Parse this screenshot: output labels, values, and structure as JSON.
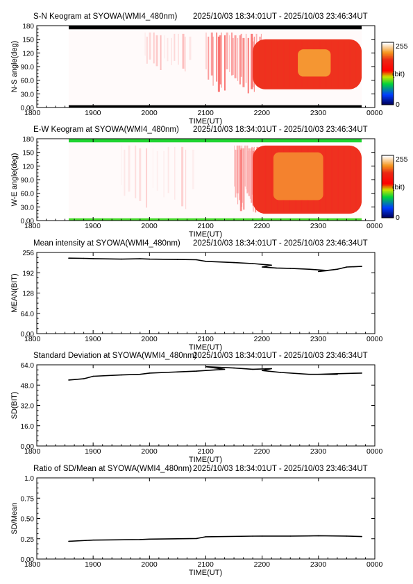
{
  "time_range": "2025/10/03 18:34:01UT - 2025/10/03 23:46:34UT",
  "colorbar": {
    "max_label": "255",
    "min_label": "0",
    "unit_label": "(bit)"
  },
  "chart_data": [
    {
      "type": "heatmap",
      "title": "S-N Keogram at SYOWA(WMI4_480nm)",
      "xlabel": "TIME(UT)",
      "ylabel": "N-S angle(deg)",
      "xlim": [
        1800,
        2400
      ],
      "ylim": [
        0,
        180
      ],
      "x_ticks": [
        "1800",
        "1900",
        "2000",
        "2100",
        "2200",
        "2300",
        "0000"
      ],
      "y_ticks": [
        "0.00",
        "30.0",
        "60.0",
        "90.0",
        "120",
        "150",
        "180"
      ],
      "data_x_start": 1834,
      "data_x_end": 2346,
      "value_range": [
        0,
        255
      ],
      "edge_bands": [
        {
          "y_range": [
            172,
            180
          ],
          "value": 0
        },
        {
          "y_range": [
            0,
            5
          ],
          "value": 0
        }
      ],
      "features": [
        {
          "kind": "faint_streaks",
          "x_range": [
            1955,
            2045
          ],
          "y_range": [
            80,
            165
          ],
          "value": 40
        },
        {
          "kind": "streaks",
          "x_range": [
            2100,
            2200
          ],
          "y_range": [
            30,
            165
          ],
          "value": 80
        },
        {
          "kind": "bright_region",
          "x_range": [
            2150,
            2346
          ],
          "y_range": [
            40,
            150
          ],
          "value": 180
        },
        {
          "kind": "core",
          "x_range": [
            2238,
            2313
          ],
          "y_range": [
            68,
            128
          ],
          "value": 205
        }
      ]
    },
    {
      "type": "heatmap",
      "title": "E-W Keogram at SYOWA(WMI4_480nm)",
      "xlabel": "TIME(UT)",
      "ylabel": "W-E angle(deg)",
      "xlim": [
        1800,
        2400
      ],
      "ylim": [
        0,
        180
      ],
      "x_ticks": [
        "1800",
        "1900",
        "2000",
        "2100",
        "2200",
        "2300",
        "0000"
      ],
      "y_ticks": [
        "0.00",
        "30.0",
        "60.0",
        "90.0",
        "120",
        "150",
        "180"
      ],
      "data_x_start": 1834,
      "data_x_end": 2346,
      "value_range": [
        0,
        255
      ],
      "edge_bands": [
        {
          "y_range": [
            172,
            180
          ],
          "value": 90
        },
        {
          "y_range": [
            0,
            5
          ],
          "value": 95
        }
      ],
      "features": [
        {
          "kind": "faint_streaks",
          "x_range": [
            1930,
            2050
          ],
          "y_range": [
            20,
            165
          ],
          "value": 25
        },
        {
          "kind": "streaks",
          "x_range": [
            2090,
            2200
          ],
          "y_range": [
            15,
            165
          ],
          "value": 70
        },
        {
          "kind": "bright_region",
          "x_range": [
            2150,
            2346
          ],
          "y_range": [
            15,
            165
          ],
          "value": 175
        },
        {
          "kind": "core",
          "x_range": [
            2212,
            2305
          ],
          "y_range": [
            45,
            150
          ],
          "value": 200
        }
      ]
    },
    {
      "type": "line",
      "title": "Mean intensity at SYOWA(WMI4_480nm)",
      "xlabel": "TIME(UT)",
      "ylabel": "MEAN(BIT)",
      "xlim": [
        1800,
        2400
      ],
      "ylim": [
        0,
        256
      ],
      "x_ticks": [
        "1800",
        "1900",
        "2000",
        "2100",
        "2200",
        "2300",
        "0000"
      ],
      "y_ticks": [
        "0.00",
        "64.0",
        "128",
        "192",
        "256"
      ],
      "x": [
        1834,
        1850,
        1900,
        1930,
        1950,
        2000,
        2030,
        2050,
        2100,
        2130,
        2150,
        2170,
        2200,
        2215,
        2230,
        2250,
        2270,
        2300,
        2320,
        2330,
        2346
      ],
      "y": [
        238,
        237.5,
        236.5,
        235,
        236,
        235,
        234,
        233,
        228,
        224,
        221,
        216,
        210,
        207,
        206,
        203,
        199,
        196,
        203,
        210,
        212
      ]
    },
    {
      "type": "line",
      "title": "Standard Deviation at SYOWA(WMI4_480nm)",
      "xlabel": "TIME(UT)",
      "ylabel": "SD(BIT)",
      "xlim": [
        1800,
        2400
      ],
      "ylim": [
        0,
        64
      ],
      "x_ticks": [
        "1800",
        "1900",
        "2000",
        "2100",
        "2200",
        "2300",
        "0000"
      ],
      "y_ticks": [
        "0.00",
        "16.0",
        "32.0",
        "48.0",
        "64.0"
      ],
      "x": [
        1834,
        1850,
        1900,
        1930,
        1950,
        2000,
        2050,
        2080,
        2100,
        2130,
        2150,
        2170,
        2200,
        2220,
        2250,
        2280,
        2300,
        2320,
        2346
      ],
      "y": [
        52,
        53,
        55,
        56,
        56.5,
        57.5,
        59,
        60.5,
        62.5,
        61.5,
        60.5,
        61,
        59.5,
        58,
        56.5,
        56.5,
        56.5,
        57,
        57.5
      ]
    },
    {
      "type": "line",
      "title": "Ratio of SD/Mean at SYOWA(WMI4_480nm)",
      "xlabel": "TIME(UT)",
      "ylabel": "SD/Mean",
      "xlim": [
        1800,
        2400
      ],
      "ylim": [
        0,
        1
      ],
      "x_ticks": [
        "1800",
        "1900",
        "2000",
        "2100",
        "2200",
        "2300",
        "0000"
      ],
      "y_ticks": [
        "0.00",
        "0.25",
        "0.50",
        "0.75",
        "1.0"
      ],
      "x": [
        1834,
        1900,
        1950,
        2000,
        2050,
        2100,
        2150,
        2200,
        2230,
        2250,
        2300,
        2330,
        2346
      ],
      "y": [
        0.219,
        0.233,
        0.24,
        0.245,
        0.253,
        0.274,
        0.282,
        0.283,
        0.283,
        0.285,
        0.287,
        0.283,
        0.277
      ]
    }
  ]
}
